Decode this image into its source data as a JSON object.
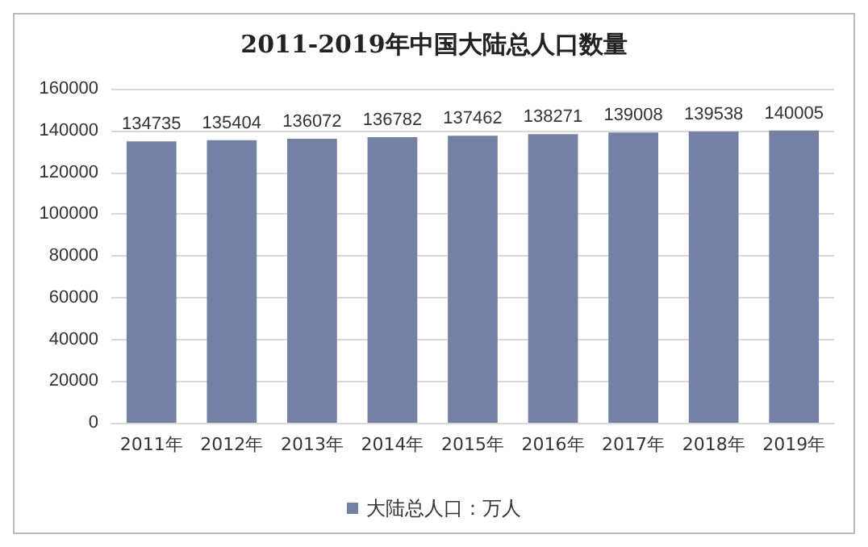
{
  "chart_data": {
    "type": "bar",
    "title": "2011-2019年中国大陆总人口数量",
    "categories": [
      "2011年",
      "2012年",
      "2013年",
      "2014年",
      "2015年",
      "2016年",
      "2017年",
      "2018年",
      "2019年"
    ],
    "series": [
      {
        "name": "大陆总人口：万人",
        "color": "#7480a4",
        "values": [
          134735,
          135404,
          136072,
          136782,
          137462,
          138271,
          139008,
          139538,
          140005
        ]
      }
    ],
    "ylim": [
      0,
      160000
    ],
    "yticks": [
      0,
      20000,
      40000,
      60000,
      80000,
      100000,
      120000,
      140000,
      160000
    ],
    "grid": "y",
    "legend": "bottom",
    "data_labels": true
  }
}
